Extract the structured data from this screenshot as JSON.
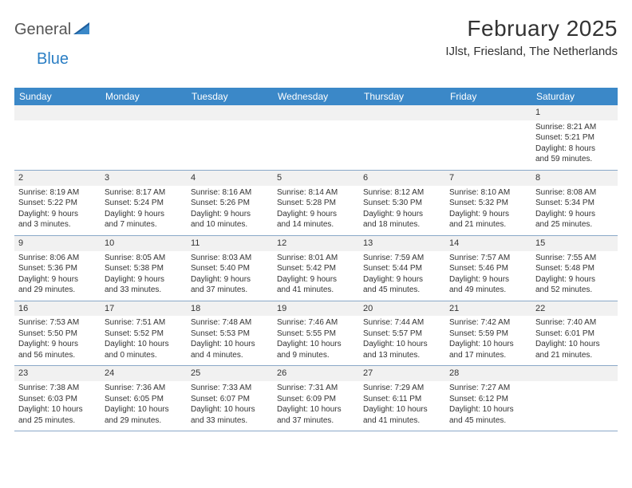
{
  "logo": {
    "text1": "General",
    "text2": "Blue",
    "text1_color": "#555555",
    "text2_color": "#2a7ec4"
  },
  "title": "February 2025",
  "subtitle": "IJlst, Friesland, The Netherlands",
  "header_bg": "#3b88c8",
  "strip_bg": "#f1f1f1",
  "rule_color": "#8aa8c8",
  "dow": [
    "Sunday",
    "Monday",
    "Tuesday",
    "Wednesday",
    "Thursday",
    "Friday",
    "Saturday"
  ],
  "weeks": [
    [
      null,
      null,
      null,
      null,
      null,
      null,
      {
        "n": "1",
        "sr": "Sunrise: 8:21 AM",
        "ss": "Sunset: 5:21 PM",
        "d1": "Daylight: 8 hours",
        "d2": "and 59 minutes."
      }
    ],
    [
      {
        "n": "2",
        "sr": "Sunrise: 8:19 AM",
        "ss": "Sunset: 5:22 PM",
        "d1": "Daylight: 9 hours",
        "d2": "and 3 minutes."
      },
      {
        "n": "3",
        "sr": "Sunrise: 8:17 AM",
        "ss": "Sunset: 5:24 PM",
        "d1": "Daylight: 9 hours",
        "d2": "and 7 minutes."
      },
      {
        "n": "4",
        "sr": "Sunrise: 8:16 AM",
        "ss": "Sunset: 5:26 PM",
        "d1": "Daylight: 9 hours",
        "d2": "and 10 minutes."
      },
      {
        "n": "5",
        "sr": "Sunrise: 8:14 AM",
        "ss": "Sunset: 5:28 PM",
        "d1": "Daylight: 9 hours",
        "d2": "and 14 minutes."
      },
      {
        "n": "6",
        "sr": "Sunrise: 8:12 AM",
        "ss": "Sunset: 5:30 PM",
        "d1": "Daylight: 9 hours",
        "d2": "and 18 minutes."
      },
      {
        "n": "7",
        "sr": "Sunrise: 8:10 AM",
        "ss": "Sunset: 5:32 PM",
        "d1": "Daylight: 9 hours",
        "d2": "and 21 minutes."
      },
      {
        "n": "8",
        "sr": "Sunrise: 8:08 AM",
        "ss": "Sunset: 5:34 PM",
        "d1": "Daylight: 9 hours",
        "d2": "and 25 minutes."
      }
    ],
    [
      {
        "n": "9",
        "sr": "Sunrise: 8:06 AM",
        "ss": "Sunset: 5:36 PM",
        "d1": "Daylight: 9 hours",
        "d2": "and 29 minutes."
      },
      {
        "n": "10",
        "sr": "Sunrise: 8:05 AM",
        "ss": "Sunset: 5:38 PM",
        "d1": "Daylight: 9 hours",
        "d2": "and 33 minutes."
      },
      {
        "n": "11",
        "sr": "Sunrise: 8:03 AM",
        "ss": "Sunset: 5:40 PM",
        "d1": "Daylight: 9 hours",
        "d2": "and 37 minutes."
      },
      {
        "n": "12",
        "sr": "Sunrise: 8:01 AM",
        "ss": "Sunset: 5:42 PM",
        "d1": "Daylight: 9 hours",
        "d2": "and 41 minutes."
      },
      {
        "n": "13",
        "sr": "Sunrise: 7:59 AM",
        "ss": "Sunset: 5:44 PM",
        "d1": "Daylight: 9 hours",
        "d2": "and 45 minutes."
      },
      {
        "n": "14",
        "sr": "Sunrise: 7:57 AM",
        "ss": "Sunset: 5:46 PM",
        "d1": "Daylight: 9 hours",
        "d2": "and 49 minutes."
      },
      {
        "n": "15",
        "sr": "Sunrise: 7:55 AM",
        "ss": "Sunset: 5:48 PM",
        "d1": "Daylight: 9 hours",
        "d2": "and 52 minutes."
      }
    ],
    [
      {
        "n": "16",
        "sr": "Sunrise: 7:53 AM",
        "ss": "Sunset: 5:50 PM",
        "d1": "Daylight: 9 hours",
        "d2": "and 56 minutes."
      },
      {
        "n": "17",
        "sr": "Sunrise: 7:51 AM",
        "ss": "Sunset: 5:52 PM",
        "d1": "Daylight: 10 hours",
        "d2": "and 0 minutes."
      },
      {
        "n": "18",
        "sr": "Sunrise: 7:48 AM",
        "ss": "Sunset: 5:53 PM",
        "d1": "Daylight: 10 hours",
        "d2": "and 4 minutes."
      },
      {
        "n": "19",
        "sr": "Sunrise: 7:46 AM",
        "ss": "Sunset: 5:55 PM",
        "d1": "Daylight: 10 hours",
        "d2": "and 9 minutes."
      },
      {
        "n": "20",
        "sr": "Sunrise: 7:44 AM",
        "ss": "Sunset: 5:57 PM",
        "d1": "Daylight: 10 hours",
        "d2": "and 13 minutes."
      },
      {
        "n": "21",
        "sr": "Sunrise: 7:42 AM",
        "ss": "Sunset: 5:59 PM",
        "d1": "Daylight: 10 hours",
        "d2": "and 17 minutes."
      },
      {
        "n": "22",
        "sr": "Sunrise: 7:40 AM",
        "ss": "Sunset: 6:01 PM",
        "d1": "Daylight: 10 hours",
        "d2": "and 21 minutes."
      }
    ],
    [
      {
        "n": "23",
        "sr": "Sunrise: 7:38 AM",
        "ss": "Sunset: 6:03 PM",
        "d1": "Daylight: 10 hours",
        "d2": "and 25 minutes."
      },
      {
        "n": "24",
        "sr": "Sunrise: 7:36 AM",
        "ss": "Sunset: 6:05 PM",
        "d1": "Daylight: 10 hours",
        "d2": "and 29 minutes."
      },
      {
        "n": "25",
        "sr": "Sunrise: 7:33 AM",
        "ss": "Sunset: 6:07 PM",
        "d1": "Daylight: 10 hours",
        "d2": "and 33 minutes."
      },
      {
        "n": "26",
        "sr": "Sunrise: 7:31 AM",
        "ss": "Sunset: 6:09 PM",
        "d1": "Daylight: 10 hours",
        "d2": "and 37 minutes."
      },
      {
        "n": "27",
        "sr": "Sunrise: 7:29 AM",
        "ss": "Sunset: 6:11 PM",
        "d1": "Daylight: 10 hours",
        "d2": "and 41 minutes."
      },
      {
        "n": "28",
        "sr": "Sunrise: 7:27 AM",
        "ss": "Sunset: 6:12 PM",
        "d1": "Daylight: 10 hours",
        "d2": "and 45 minutes."
      },
      null
    ]
  ]
}
